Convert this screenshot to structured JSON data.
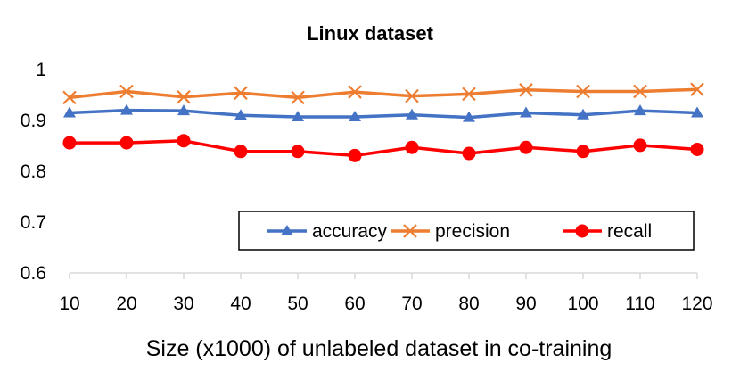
{
  "chart_data": {
    "type": "line",
    "title": "Linux dataset",
    "xlabel": "Size (x1000) of unlabeled dataset in co-training",
    "ylabel": "",
    "categories": [
      "10",
      "20",
      "30",
      "40",
      "50",
      "60",
      "70",
      "80",
      "90",
      "100",
      "110",
      "120"
    ],
    "yticks": [
      "0.6",
      "0.7",
      "0.8",
      "0.9",
      "1"
    ],
    "ylim": [
      0.6,
      1.0
    ],
    "grid": false,
    "legend_position": "bottom-right",
    "series": [
      {
        "name": "accuracy",
        "color": "#4472C4",
        "marker": "triangle",
        "values": [
          0.915,
          0.92,
          0.919,
          0.91,
          0.907,
          0.907,
          0.911,
          0.906,
          0.915,
          0.911,
          0.919,
          0.915
        ]
      },
      {
        "name": "precision",
        "color": "#ED7D31",
        "marker": "x",
        "values": [
          0.945,
          0.957,
          0.946,
          0.954,
          0.945,
          0.956,
          0.948,
          0.952,
          0.96,
          0.957,
          0.957,
          0.961
        ]
      },
      {
        "name": "recall",
        "color": "#FF0000",
        "marker": "circle",
        "values": [
          0.856,
          0.856,
          0.86,
          0.839,
          0.839,
          0.831,
          0.847,
          0.835,
          0.847,
          0.839,
          0.851,
          0.843
        ]
      }
    ]
  }
}
